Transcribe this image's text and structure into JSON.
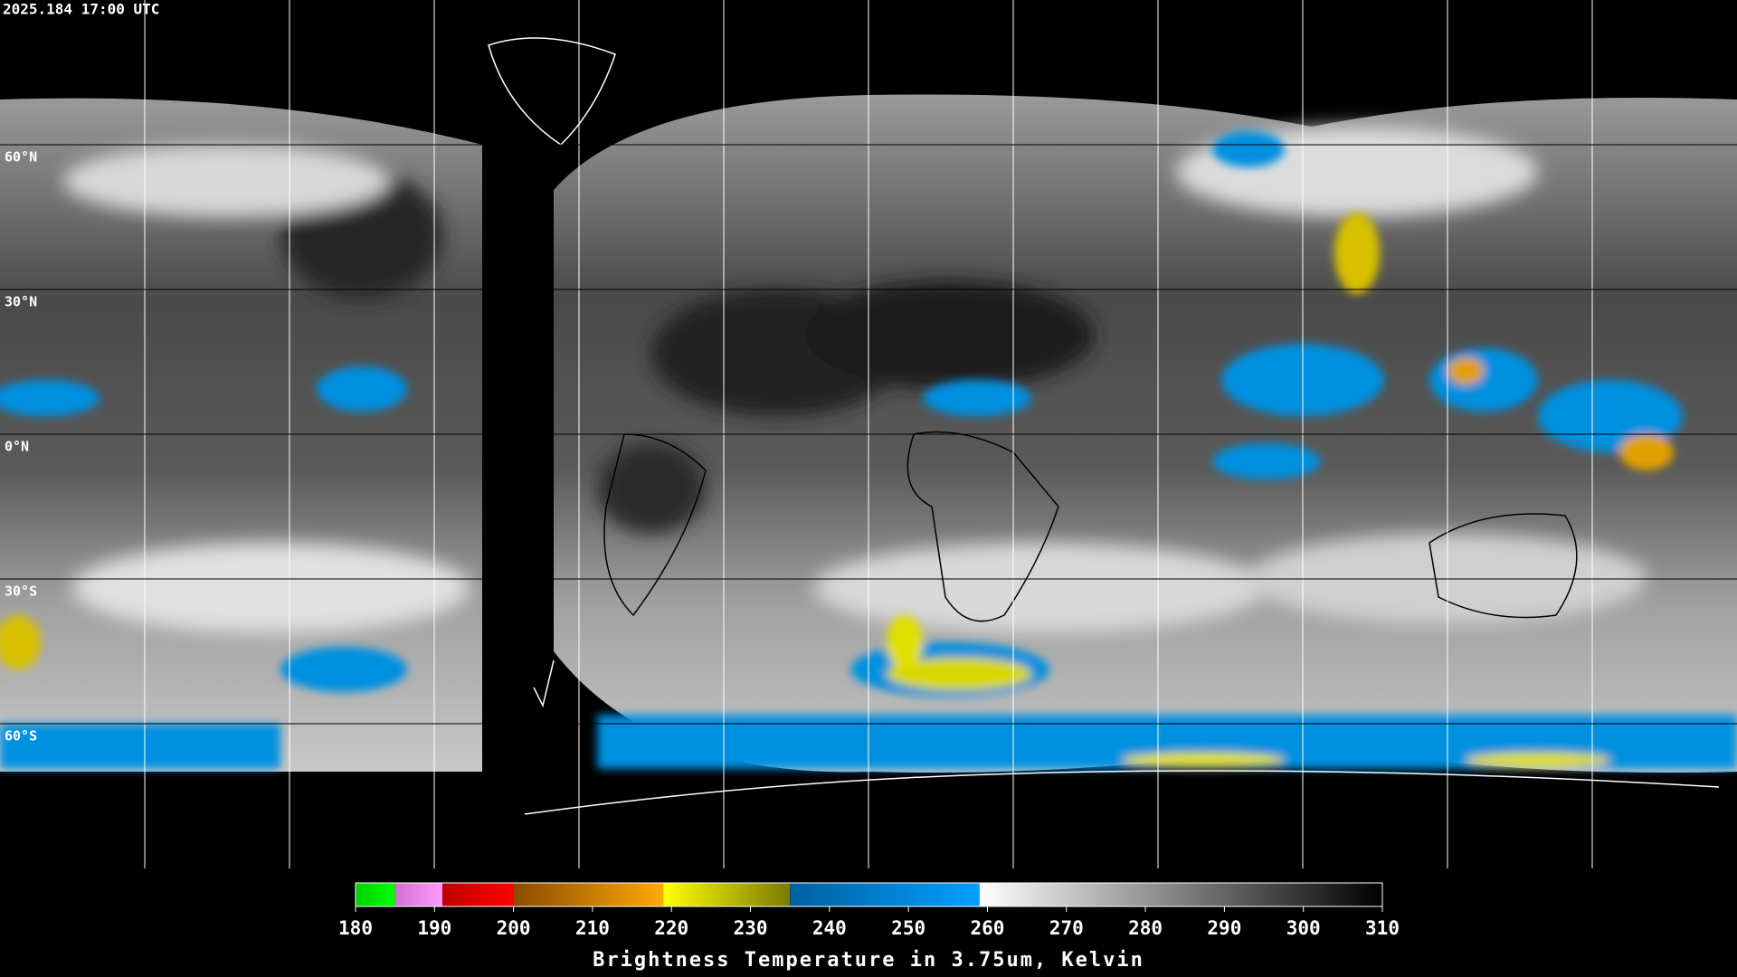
{
  "header": {
    "timestamp": "2025.184 17:00 UTC"
  },
  "map": {
    "xlim": [
      -180,
      180
    ],
    "ylim": [
      -90,
      90
    ],
    "latitudes": [
      {
        "value": 60,
        "label": "60°N"
      },
      {
        "value": 30,
        "label": "30°N"
      },
      {
        "value": 0,
        "label": "0°N"
      },
      {
        "value": -30,
        "label": "30°S"
      },
      {
        "value": -60,
        "label": "60°S"
      }
    ],
    "longitudes": [
      -150,
      -120,
      -90,
      -60,
      -30,
      0,
      30,
      60,
      90,
      120,
      150
    ]
  },
  "chart_data": {
    "type": "colorbar",
    "title": "Brightness Temperature in 3.75um, Kelvin",
    "xlim": [
      180,
      310
    ],
    "xticks": [
      180,
      190,
      200,
      210,
      220,
      230,
      240,
      250,
      260,
      270,
      280,
      290,
      300,
      310
    ],
    "segments": [
      {
        "from": 180,
        "to": 185,
        "colors": [
          "#00d000",
          "#00ff00"
        ]
      },
      {
        "from": 185,
        "to": 191,
        "colors": [
          "#d070d0",
          "#ff9cff"
        ]
      },
      {
        "from": 191,
        "to": 200,
        "colors": [
          "#c00000",
          "#ff0000"
        ]
      },
      {
        "from": 200,
        "to": 219,
        "colors": [
          "#8a4a00",
          "#ffaa00"
        ]
      },
      {
        "from": 219,
        "to": 235,
        "colors": [
          "#ffff00",
          "#7a7a00"
        ]
      },
      {
        "from": 235,
        "to": 259,
        "colors": [
          "#0060a0",
          "#00a0ff"
        ]
      },
      {
        "from": 259,
        "to": 310,
        "colors": [
          "#ffffff",
          "#000000"
        ]
      }
    ]
  }
}
